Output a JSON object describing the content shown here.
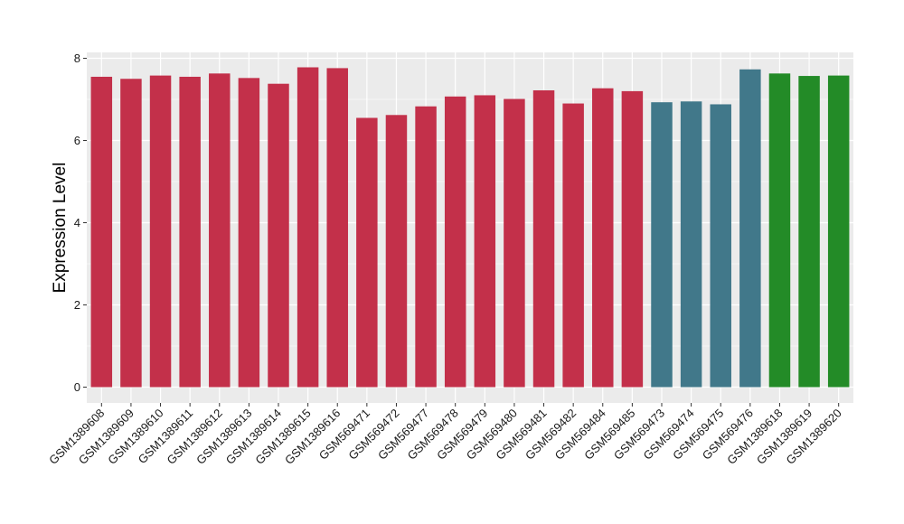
{
  "chart_data": {
    "type": "bar",
    "title": "",
    "xlabel": "",
    "ylabel": "Expression Level",
    "ylim": [
      0,
      8.2
    ],
    "yticks": [
      0,
      2,
      4,
      6,
      8
    ],
    "grid": true,
    "categories": [
      "GSM1389608",
      "GSM1389609",
      "GSM1389610",
      "GSM1389611",
      "GSM1389612",
      "GSM1389613",
      "GSM1389614",
      "GSM1389615",
      "GSM1389616",
      "GSM569471",
      "GSM569472",
      "GSM569477",
      "GSM569478",
      "GSM569479",
      "GSM569480",
      "GSM569481",
      "GSM569482",
      "GSM569484",
      "GSM569485",
      "GSM569473",
      "GSM569474",
      "GSM569475",
      "GSM569476",
      "GSM1389618",
      "GSM1389619",
      "GSM1389620"
    ],
    "values": [
      7.55,
      7.5,
      7.58,
      7.55,
      7.63,
      7.52,
      7.38,
      7.78,
      7.76,
      6.55,
      6.62,
      6.83,
      7.07,
      7.1,
      7.01,
      7.22,
      6.9,
      7.27,
      7.2,
      6.93,
      6.95,
      6.88,
      7.73,
      7.63,
      7.57,
      7.58
    ],
    "bar_colors": [
      "#c3304a",
      "#c3304a",
      "#c3304a",
      "#c3304a",
      "#c3304a",
      "#c3304a",
      "#c3304a",
      "#c3304a",
      "#c3304a",
      "#c3304a",
      "#c3304a",
      "#c3304a",
      "#c3304a",
      "#c3304a",
      "#c3304a",
      "#c3304a",
      "#c3304a",
      "#c3304a",
      "#c3304a",
      "#41788a",
      "#41788a",
      "#41788a",
      "#41788a",
      "#238b27",
      "#238b27",
      "#238b27"
    ],
    "panel_background": "#ebebeb",
    "grid_color": "#ffffff"
  }
}
